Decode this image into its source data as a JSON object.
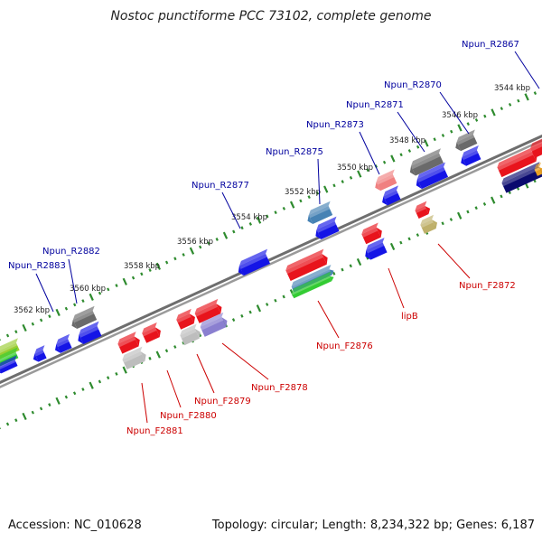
{
  "header": {
    "title": "Nostoc punctiforme PCC 73102, complete genome"
  },
  "footer": {
    "accession": "Accession: NC_010628",
    "summary": "Topology: circular; Length: 8,234,322 bp; Genes: 6,187"
  },
  "colors": {
    "backbone": "#7a7a7a",
    "ticks": "#2e8b2e",
    "forward_label": "#cc0000",
    "reverse_label": "#00009e",
    "kbp_label": "#222222"
  },
  "scale": {
    "unit": "kbp"
  },
  "ticks": [
    {
      "label": "3544 kbp"
    },
    {
      "label": "3546 kbp"
    },
    {
      "label": "3548 kbp"
    },
    {
      "label": "3550 kbp"
    },
    {
      "label": "3552 kbp"
    },
    {
      "label": "3554 kbp"
    },
    {
      "label": "3556 kbp"
    },
    {
      "label": "3558 kbp"
    },
    {
      "label": "3560 kbp"
    },
    {
      "label": "3562 kbp"
    }
  ],
  "reverse_labels": [
    {
      "label": "Npun_R2867"
    },
    {
      "label": "Npun_R2870"
    },
    {
      "label": "Npun_R2871"
    },
    {
      "label": "Npun_R2873"
    },
    {
      "label": "Npun_R2875"
    },
    {
      "label": "Npun_R2877"
    },
    {
      "label": "Npun_R2882"
    },
    {
      "label": "Npun_R2883"
    }
  ],
  "forward_labels": [
    {
      "label": "Npun_F2872"
    },
    {
      "label": "lipB"
    },
    {
      "label": "Npun_F2876"
    },
    {
      "label": "Npun_F2878"
    },
    {
      "label": "Npun_F2879"
    },
    {
      "label": "Npun_F2880"
    },
    {
      "label": "Npun_F2881"
    }
  ],
  "feature_colors": {
    "forward_gene": "#e8141c",
    "reverse_gene": "#1414e6",
    "grey_feature": "#6a6a6a",
    "light_grey_feature": "#bdbdbd",
    "pink_feature": "#f08080",
    "olive_feature": "#bfb06a",
    "steel_feature": "#4682b4",
    "lavender_feature": "#8a7fd0",
    "green_feature": "#33cc33",
    "navy_feature": "#0a0a6e",
    "yellowgreen_feature": "#9acd32",
    "orange_feature": "#e8a020"
  }
}
